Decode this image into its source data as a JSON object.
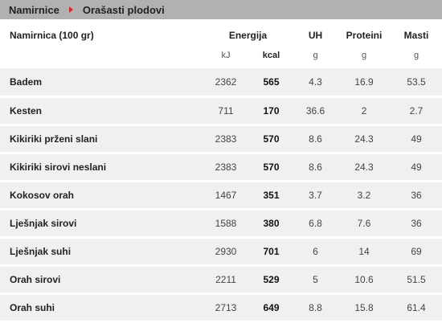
{
  "breadcrumb": {
    "home": "Namirnice",
    "current": "Orašasti plodovi"
  },
  "table": {
    "headers": {
      "name": "Namirnica (100 gr)",
      "energy": "Energija",
      "uh": "UH",
      "protein": "Proteini",
      "fat": "Masti"
    },
    "units": {
      "kj": "kJ",
      "kcal": "kcal",
      "uh": "g",
      "protein": "g",
      "fat": "g"
    },
    "rows": [
      {
        "name": "Badem",
        "kj": "2362",
        "kcal": "565",
        "uh": "4.3",
        "protein": "16.9",
        "fat": "53.5"
      },
      {
        "name": "Kesten",
        "kj": "711",
        "kcal": "170",
        "uh": "36.6",
        "protein": "2",
        "fat": "2.7"
      },
      {
        "name": "Kikiriki prženi slani",
        "kj": "2383",
        "kcal": "570",
        "uh": "8.6",
        "protein": "24.3",
        "fat": "49"
      },
      {
        "name": "Kikiriki sirovi neslani",
        "kj": "2383",
        "kcal": "570",
        "uh": "8.6",
        "protein": "24.3",
        "fat": "49"
      },
      {
        "name": "Kokosov orah",
        "kj": "1467",
        "kcal": "351",
        "uh": "3.7",
        "protein": "3.2",
        "fat": "36"
      },
      {
        "name": "Lješnjak sirovi",
        "kj": "1588",
        "kcal": "380",
        "uh": "6.8",
        "protein": "7.6",
        "fat": "36"
      },
      {
        "name": "Lješnjak suhi",
        "kj": "2930",
        "kcal": "701",
        "uh": "6",
        "protein": "14",
        "fat": "69"
      },
      {
        "name": "Orah sirovi",
        "kj": "2211",
        "kcal": "529",
        "uh": "5",
        "protein": "10.6",
        "fat": "51.5"
      },
      {
        "name": "Orah suhi",
        "kj": "2713",
        "kcal": "649",
        "uh": "8.8",
        "protein": "15.8",
        "fat": "61.4"
      }
    ]
  },
  "colors": {
    "breadcrumb_bg": "#b1b1b1",
    "arrow": "#d8282c",
    "row_shade": "#f0f0f0"
  }
}
